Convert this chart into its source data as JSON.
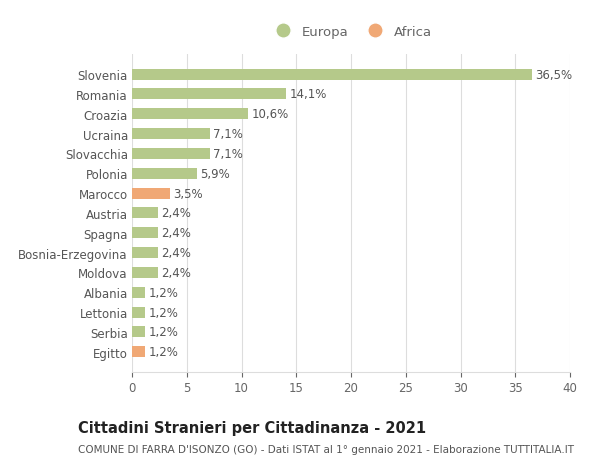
{
  "categories": [
    "Egitto",
    "Serbia",
    "Lettonia",
    "Albania",
    "Moldova",
    "Bosnia-Erzegovina",
    "Spagna",
    "Austria",
    "Marocco",
    "Polonia",
    "Slovacchia",
    "Ucraina",
    "Croazia",
    "Romania",
    "Slovenia"
  ],
  "values": [
    1.2,
    1.2,
    1.2,
    1.2,
    2.4,
    2.4,
    2.4,
    2.4,
    3.5,
    5.9,
    7.1,
    7.1,
    10.6,
    14.1,
    36.5
  ],
  "colors": [
    "#f0a875",
    "#b5c98a",
    "#b5c98a",
    "#b5c98a",
    "#b5c98a",
    "#b5c98a",
    "#b5c98a",
    "#b5c98a",
    "#f0a875",
    "#b5c98a",
    "#b5c98a",
    "#b5c98a",
    "#b5c98a",
    "#b5c98a",
    "#b5c98a"
  ],
  "labels": [
    "1,2%",
    "1,2%",
    "1,2%",
    "1,2%",
    "2,4%",
    "2,4%",
    "2,4%",
    "2,4%",
    "3,5%",
    "5,9%",
    "7,1%",
    "7,1%",
    "10,6%",
    "14,1%",
    "36,5%"
  ],
  "legend_europa_color": "#b5c98a",
  "legend_africa_color": "#f0a875",
  "title": "Cittadini Stranieri per Cittadinanza - 2021",
  "subtitle": "COMUNE DI FARRA D'ISONZO (GO) - Dati ISTAT al 1° gennaio 2021 - Elaborazione TUTTITALIA.IT",
  "xlim": [
    0,
    40
  ],
  "xticks": [
    0,
    5,
    10,
    15,
    20,
    25,
    30,
    35,
    40
  ],
  "background_color": "#ffffff",
  "grid_color": "#dddddd",
  "bar_height": 0.55,
  "label_fontsize": 8.5,
  "title_fontsize": 10.5,
  "subtitle_fontsize": 7.5,
  "tick_fontsize": 8.5,
  "legend_fontsize": 9.5
}
